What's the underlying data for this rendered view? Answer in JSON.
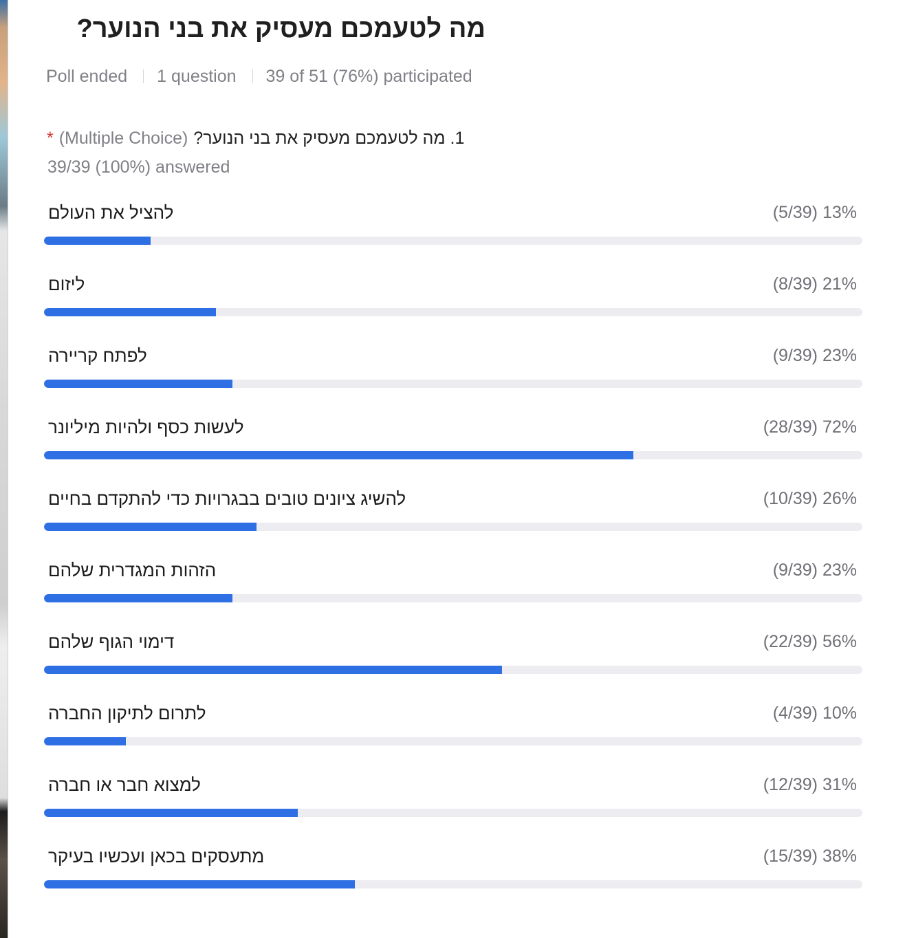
{
  "poll": {
    "title": "מה לטעמכם מעסיק את בני הנוער?",
    "meta": {
      "status": "Poll ended",
      "questions": "1 question",
      "participation": "39 of 51 (76%) participated"
    },
    "question": {
      "required_mark": "*",
      "type_label": "(Multiple Choice)",
      "text": "1. מה לטעמכם מעסיק את בני הנוער?",
      "answered": "39/39 (100%) answered"
    },
    "options": [
      {
        "label": "להציל את העולם",
        "stats": "(5/39) 13%",
        "fraction": 0.13
      },
      {
        "label": "ליזום",
        "stats": "(8/39) 21%",
        "fraction": 0.21
      },
      {
        "label": "לפתח קריירה",
        "stats": "(9/39) 23%",
        "fraction": 0.23
      },
      {
        "label": "לעשות כסף ולהיות מיליונר",
        "stats": "(28/39) 72%",
        "fraction": 0.72
      },
      {
        "label": "להשיג ציונים טובים בבגרויות כדי להתקדם בחיים",
        "stats": "(10/39) 26%",
        "fraction": 0.26
      },
      {
        "label": "הזהות המגדרית שלהם",
        "stats": "(9/39) 23%",
        "fraction": 0.23
      },
      {
        "label": "דימוי הגוף שלהם",
        "stats": "(22/39) 56%",
        "fraction": 0.56
      },
      {
        "label": "לתרום לתיקון החברה",
        "stats": "(4/39) 10%",
        "fraction": 0.1
      },
      {
        "label": "למצוא חבר או חברה",
        "stats": "(12/39) 31%",
        "fraction": 0.31
      },
      {
        "label": "מתעסקים בכאן ועכשיו בעיקר",
        "stats": "(15/39) 38%",
        "fraction": 0.38
      }
    ]
  },
  "colors": {
    "bar_fill": "#2f6fe4",
    "bar_track": "#ededf1",
    "required": "#d43a2f",
    "muted_text": "#808087"
  }
}
